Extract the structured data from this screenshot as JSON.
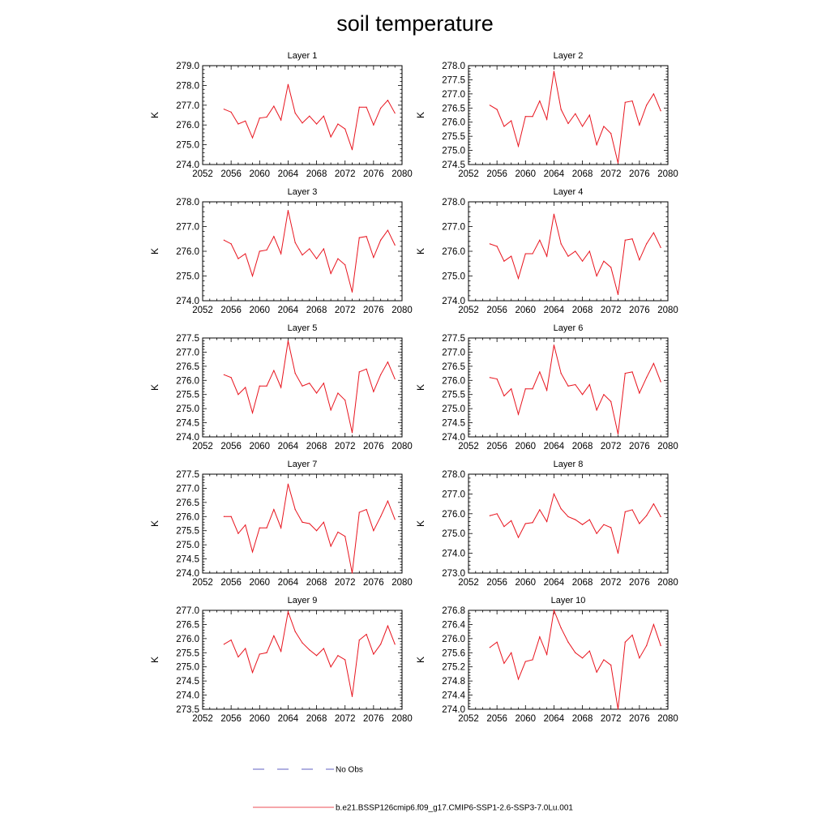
{
  "title": "soil temperature",
  "colors": {
    "model": "#e8141e",
    "obs": "#2f2fb0",
    "axis": "#000000"
  },
  "legend": [
    {
      "label": "No Obs",
      "style": "dashed",
      "color": "#2f2fb0"
    },
    {
      "label": "b.e21.BSSP126cmip6.f09_g17.CMIP6-SSP1-2.6-SSP3-7.0Lu.001",
      "style": "solid",
      "color": "#e8141e"
    }
  ],
  "chart_data": [
    {
      "type": "line",
      "title": "Layer 1",
      "ylabel": "K",
      "xlim": [
        2052,
        2080
      ],
      "ylim": [
        274.0,
        279.0
      ],
      "xticks": [
        "2052",
        "2056",
        "2060",
        "2064",
        "2068",
        "2072",
        "2076",
        "2080"
      ],
      "yticks": [
        "274.0",
        "275.0",
        "276.0",
        "277.0",
        "278.0",
        "279.0"
      ],
      "x": [
        2055,
        2056,
        2057,
        2058,
        2059,
        2060,
        2061,
        2062,
        2063,
        2064,
        2065,
        2066,
        2067,
        2068,
        2069,
        2070,
        2071,
        2072,
        2073,
        2074,
        2075,
        2076,
        2077,
        2078,
        2079
      ],
      "series": [
        {
          "name": "b.e21.BSSP126cmip6.f09_g17.CMIP6-SSP1-2.6-SSP3-7.0Lu.001",
          "values": [
            276.8,
            276.65,
            276.05,
            276.2,
            275.35,
            276.35,
            276.4,
            276.95,
            276.25,
            278.05,
            276.6,
            276.1,
            276.45,
            276.05,
            276.45,
            275.4,
            276.05,
            275.8,
            274.75,
            276.9,
            276.9,
            276.0,
            276.85,
            277.25,
            276.6
          ]
        }
      ]
    },
    {
      "type": "line",
      "title": "Layer 2",
      "ylabel": "K",
      "xlim": [
        2052,
        2080
      ],
      "ylim": [
        274.5,
        278.0
      ],
      "xticks": [
        "2052",
        "2056",
        "2060",
        "2064",
        "2068",
        "2072",
        "2076",
        "2080"
      ],
      "yticks": [
        "274.5",
        "275.0",
        "275.5",
        "276.0",
        "276.5",
        "277.0",
        "277.5",
        "278.0"
      ],
      "x": [
        2055,
        2056,
        2057,
        2058,
        2059,
        2060,
        2061,
        2062,
        2063,
        2064,
        2065,
        2066,
        2067,
        2068,
        2069,
        2070,
        2071,
        2072,
        2073,
        2074,
        2075,
        2076,
        2077,
        2078,
        2079
      ],
      "series": [
        {
          "name": "b.e21.BSSP126cmip6.f09_g17.CMIP6-SSP1-2.6-SSP3-7.0Lu.001",
          "values": [
            276.6,
            276.45,
            275.85,
            276.05,
            275.15,
            276.2,
            276.2,
            276.75,
            276.1,
            277.8,
            276.45,
            275.95,
            276.3,
            275.85,
            276.25,
            275.2,
            275.85,
            275.6,
            274.55,
            276.7,
            276.75,
            275.9,
            276.6,
            277.0,
            276.4
          ]
        }
      ]
    },
    {
      "type": "line",
      "title": "Layer 3",
      "ylabel": "K",
      "xlim": [
        2052,
        2080
      ],
      "ylim": [
        274.0,
        278.0
      ],
      "xticks": [
        "2052",
        "2056",
        "2060",
        "2064",
        "2068",
        "2072",
        "2076",
        "2080"
      ],
      "yticks": [
        "274.0",
        "275.0",
        "276.0",
        "277.0",
        "278.0"
      ],
      "x": [
        2055,
        2056,
        2057,
        2058,
        2059,
        2060,
        2061,
        2062,
        2063,
        2064,
        2065,
        2066,
        2067,
        2068,
        2069,
        2070,
        2071,
        2072,
        2073,
        2074,
        2075,
        2076,
        2077,
        2078,
        2079
      ],
      "series": [
        {
          "name": "b.e21.BSSP126cmip6.f09_g17.CMIP6-SSP1-2.6-SSP3-7.0Lu.001",
          "values": [
            276.45,
            276.3,
            275.7,
            275.9,
            275.0,
            276.0,
            276.05,
            276.6,
            275.9,
            277.65,
            276.35,
            275.85,
            276.1,
            275.7,
            276.1,
            275.1,
            275.7,
            275.45,
            274.35,
            276.55,
            276.6,
            275.75,
            276.45,
            276.85,
            276.25
          ]
        }
      ]
    },
    {
      "type": "line",
      "title": "Layer 4",
      "ylabel": "K",
      "xlim": [
        2052,
        2080
      ],
      "ylim": [
        274.0,
        278.0
      ],
      "xticks": [
        "2052",
        "2056",
        "2060",
        "2064",
        "2068",
        "2072",
        "2076",
        "2080"
      ],
      "yticks": [
        "274.0",
        "275.0",
        "276.0",
        "277.0",
        "278.0"
      ],
      "x": [
        2055,
        2056,
        2057,
        2058,
        2059,
        2060,
        2061,
        2062,
        2063,
        2064,
        2065,
        2066,
        2067,
        2068,
        2069,
        2070,
        2071,
        2072,
        2073,
        2074,
        2075,
        2076,
        2077,
        2078,
        2079
      ],
      "series": [
        {
          "name": "b.e21.BSSP126cmip6.f09_g17.CMIP6-SSP1-2.6-SSP3-7.0Lu.001",
          "values": [
            276.3,
            276.2,
            275.6,
            275.8,
            274.9,
            275.9,
            275.9,
            276.45,
            275.8,
            277.5,
            276.3,
            275.8,
            276.0,
            275.6,
            276.0,
            275.0,
            275.6,
            275.35,
            274.25,
            276.45,
            276.5,
            275.65,
            276.3,
            276.75,
            276.15
          ]
        }
      ]
    },
    {
      "type": "line",
      "title": "Layer 5",
      "ylabel": "K",
      "xlim": [
        2052,
        2080
      ],
      "ylim": [
        274.0,
        277.5
      ],
      "xticks": [
        "2052",
        "2056",
        "2060",
        "2064",
        "2068",
        "2072",
        "2076",
        "2080"
      ],
      "yticks": [
        "274.0",
        "274.5",
        "275.0",
        "275.5",
        "276.0",
        "276.5",
        "277.0",
        "277.5"
      ],
      "x": [
        2055,
        2056,
        2057,
        2058,
        2059,
        2060,
        2061,
        2062,
        2063,
        2064,
        2065,
        2066,
        2067,
        2068,
        2069,
        2070,
        2071,
        2072,
        2073,
        2074,
        2075,
        2076,
        2077,
        2078,
        2079
      ],
      "series": [
        {
          "name": "b.e21.BSSP126cmip6.f09_g17.CMIP6-SSP1-2.6-SSP3-7.0Lu.001",
          "values": [
            276.2,
            276.1,
            275.5,
            275.75,
            274.85,
            275.8,
            275.8,
            276.35,
            275.75,
            277.4,
            276.25,
            275.8,
            275.9,
            275.55,
            275.9,
            274.95,
            275.55,
            275.3,
            274.15,
            276.3,
            276.4,
            275.6,
            276.2,
            276.65,
            276.05
          ]
        }
      ]
    },
    {
      "type": "line",
      "title": "Layer 6",
      "ylabel": "K",
      "xlim": [
        2052,
        2080
      ],
      "ylim": [
        274.0,
        277.5
      ],
      "xticks": [
        "2052",
        "2056",
        "2060",
        "2064",
        "2068",
        "2072",
        "2076",
        "2080"
      ],
      "yticks": [
        "274.0",
        "274.5",
        "275.0",
        "275.5",
        "276.0",
        "276.5",
        "277.0",
        "277.5"
      ],
      "x": [
        2055,
        2056,
        2057,
        2058,
        2059,
        2060,
        2061,
        2062,
        2063,
        2064,
        2065,
        2066,
        2067,
        2068,
        2069,
        2070,
        2071,
        2072,
        2073,
        2074,
        2075,
        2076,
        2077,
        2078,
        2079
      ],
      "series": [
        {
          "name": "b.e21.BSSP126cmip6.f09_g17.CMIP6-SSP1-2.6-SSP3-7.0Lu.001",
          "values": [
            276.1,
            276.05,
            275.45,
            275.7,
            274.8,
            275.7,
            275.7,
            276.3,
            275.65,
            277.25,
            276.25,
            275.8,
            275.85,
            275.5,
            275.85,
            274.95,
            275.5,
            275.25,
            274.1,
            276.25,
            276.3,
            275.55,
            276.1,
            276.6,
            275.95
          ]
        }
      ]
    },
    {
      "type": "line",
      "title": "Layer 7",
      "ylabel": "K",
      "xlim": [
        2052,
        2080
      ],
      "ylim": [
        274.0,
        277.5
      ],
      "xticks": [
        "2052",
        "2056",
        "2060",
        "2064",
        "2068",
        "2072",
        "2076",
        "2080"
      ],
      "yticks": [
        "274.0",
        "274.5",
        "275.0",
        "275.5",
        "276.0",
        "276.5",
        "277.0",
        "277.5"
      ],
      "x": [
        2055,
        2056,
        2057,
        2058,
        2059,
        2060,
        2061,
        2062,
        2063,
        2064,
        2065,
        2066,
        2067,
        2068,
        2069,
        2070,
        2071,
        2072,
        2073,
        2074,
        2075,
        2076,
        2077,
        2078,
        2079
      ],
      "series": [
        {
          "name": "b.e21.BSSP126cmip6.f09_g17.CMIP6-SSP1-2.6-SSP3-7.0Lu.001",
          "values": [
            276.0,
            276.0,
            275.4,
            275.7,
            274.75,
            275.6,
            275.6,
            276.25,
            275.6,
            277.15,
            276.25,
            275.8,
            275.75,
            275.5,
            275.8,
            274.95,
            275.45,
            275.3,
            274.0,
            276.15,
            276.25,
            275.5,
            276.0,
            276.55,
            275.9
          ]
        }
      ]
    },
    {
      "type": "line",
      "title": "Layer 8",
      "ylabel": "K",
      "xlim": [
        2052,
        2080
      ],
      "ylim": [
        273.0,
        278.0
      ],
      "xticks": [
        "2052",
        "2056",
        "2060",
        "2064",
        "2068",
        "2072",
        "2076",
        "2080"
      ],
      "yticks": [
        "273.0",
        "274.0",
        "275.0",
        "276.0",
        "277.0",
        "278.0"
      ],
      "x": [
        2055,
        2056,
        2057,
        2058,
        2059,
        2060,
        2061,
        2062,
        2063,
        2064,
        2065,
        2066,
        2067,
        2068,
        2069,
        2070,
        2071,
        2072,
        2073,
        2074,
        2075,
        2076,
        2077,
        2078,
        2079
      ],
      "series": [
        {
          "name": "b.e21.BSSP126cmip6.f09_g17.CMIP6-SSP1-2.6-SSP3-7.0Lu.001",
          "values": [
            275.9,
            276.0,
            275.35,
            275.65,
            274.8,
            275.5,
            275.55,
            276.2,
            275.6,
            277.0,
            276.25,
            275.85,
            275.7,
            275.45,
            275.7,
            275.0,
            275.45,
            275.3,
            274.0,
            276.1,
            276.2,
            275.5,
            275.9,
            276.5,
            275.85
          ]
        }
      ]
    },
    {
      "type": "line",
      "title": "Layer 9",
      "ylabel": "K",
      "xlim": [
        2052,
        2080
      ],
      "ylim": [
        273.5,
        277.0
      ],
      "xticks": [
        "2052",
        "2056",
        "2060",
        "2064",
        "2068",
        "2072",
        "2076",
        "2080"
      ],
      "yticks": [
        "273.5",
        "274.0",
        "274.5",
        "275.0",
        "275.5",
        "276.0",
        "276.5",
        "277.0"
      ],
      "x": [
        2055,
        2056,
        2057,
        2058,
        2059,
        2060,
        2061,
        2062,
        2063,
        2064,
        2065,
        2066,
        2067,
        2068,
        2069,
        2070,
        2071,
        2072,
        2073,
        2074,
        2075,
        2076,
        2077,
        2078,
        2079
      ],
      "series": [
        {
          "name": "b.e21.BSSP126cmip6.f09_g17.CMIP6-SSP1-2.6-SSP3-7.0Lu.001",
          "values": [
            275.8,
            275.95,
            275.35,
            275.65,
            274.8,
            275.45,
            275.5,
            276.1,
            275.55,
            276.95,
            276.25,
            275.85,
            275.6,
            275.4,
            275.65,
            275.0,
            275.4,
            275.25,
            273.95,
            275.95,
            276.15,
            275.45,
            275.8,
            276.45,
            275.8
          ]
        }
      ]
    },
    {
      "type": "line",
      "title": "Layer 10",
      "ylabel": "K",
      "xlim": [
        2052,
        2080
      ],
      "ylim": [
        274.0,
        276.8
      ],
      "xticks": [
        "2052",
        "2056",
        "2060",
        "2064",
        "2068",
        "2072",
        "2076",
        "2080"
      ],
      "yticks": [
        "274.0",
        "274.4",
        "274.8",
        "275.2",
        "275.6",
        "276.0",
        "276.4",
        "276.8"
      ],
      "x": [
        2055,
        2056,
        2057,
        2058,
        2059,
        2060,
        2061,
        2062,
        2063,
        2064,
        2065,
        2066,
        2067,
        2068,
        2069,
        2070,
        2071,
        2072,
        2073,
        2074,
        2075,
        2076,
        2077,
        2078,
        2079
      ],
      "series": [
        {
          "name": "b.e21.BSSP126cmip6.f09_g17.CMIP6-SSP1-2.6-SSP3-7.0Lu.001",
          "values": [
            275.75,
            275.9,
            275.3,
            275.6,
            274.85,
            275.35,
            275.4,
            276.05,
            275.55,
            276.8,
            276.3,
            275.9,
            275.6,
            275.45,
            275.65,
            275.05,
            275.4,
            275.25,
            274.0,
            275.9,
            276.1,
            275.45,
            275.8,
            276.4,
            275.8
          ]
        }
      ]
    }
  ]
}
